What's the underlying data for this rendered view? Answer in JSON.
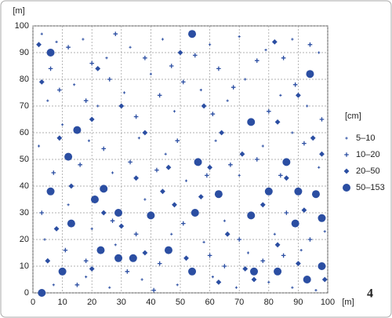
{
  "chart_data": {
    "type": "scatter",
    "xlabel": "[m]",
    "ylabel": "[m]",
    "legend_title": "[cm]",
    "figure_number": "4",
    "xlim": [
      0,
      100
    ],
    "ylim": [
      0,
      100
    ],
    "xticks": [
      0,
      10,
      20,
      30,
      40,
      50,
      60,
      70,
      80,
      90,
      100
    ],
    "yticks": [
      0,
      10,
      20,
      30,
      40,
      50,
      60,
      70,
      80,
      90,
      100
    ],
    "grid": true,
    "legend": "right",
    "series": [
      {
        "name": "5–10",
        "color": "#2b4ea2",
        "marker": "plus",
        "x": [
          3,
          8,
          17,
          25,
          33,
          44,
          60,
          70,
          79,
          88,
          97,
          5,
          14,
          22,
          31,
          40,
          48,
          57,
          66,
          72,
          84,
          93,
          2,
          10,
          19,
          27,
          36,
          45,
          52,
          62,
          70,
          78,
          88,
          97,
          4,
          12,
          20,
          28,
          38,
          47,
          58,
          65,
          73,
          82,
          91,
          99,
          7,
          18,
          26,
          37,
          49,
          61,
          69,
          80,
          88,
          96
        ],
        "y": [
          97,
          94,
          95,
          88,
          92,
          95,
          93,
          96,
          91,
          95,
          90,
          72,
          78,
          70,
          75,
          82,
          68,
          76,
          72,
          80,
          74,
          70,
          55,
          63,
          57,
          45,
          58,
          52,
          42,
          57,
          44,
          55,
          60,
          47,
          20,
          33,
          24,
          18,
          35,
          22,
          19,
          27,
          15,
          22,
          16,
          23,
          3,
          6,
          2,
          5,
          3,
          6,
          2,
          4,
          2,
          1
        ]
      },
      {
        "name": "10–20",
        "color": "#2b4ea2",
        "marker": "plus",
        "x": [
          6,
          12,
          20,
          28,
          38,
          47,
          55,
          63,
          76,
          85,
          94,
          9,
          18,
          26,
          35,
          43,
          51,
          61,
          68,
          80,
          89,
          98,
          7,
          16,
          24,
          33,
          42,
          49,
          59,
          67,
          76,
          84,
          92,
          3,
          11,
          18,
          27,
          35,
          43,
          51,
          60,
          70,
          78,
          86,
          94,
          15,
          32,
          41,
          65,
          85
        ],
        "y": [
          84,
          92,
          86,
          97,
          88,
          85,
          89,
          84,
          87,
          88,
          93,
          76,
          72,
          80,
          66,
          74,
          79,
          67,
          77,
          68,
          78,
          65,
          45,
          48,
          54,
          49,
          46,
          57,
          44,
          48,
          50,
          44,
          56,
          30,
          16,
          12,
          27,
          22,
          11,
          26,
          14,
          20,
          12,
          30,
          20,
          3,
          8,
          1,
          10,
          14
        ]
      },
      {
        "name": "20–50",
        "color": "#2b4ea2",
        "marker": "diamond",
        "x": [
          2,
          22,
          30,
          50,
          58,
          82,
          90,
          3,
          9,
          20,
          38,
          46,
          64,
          71,
          83,
          95,
          13,
          35,
          44,
          60,
          78,
          86,
          98,
          8,
          24,
          30,
          48,
          57,
          66,
          83,
          92,
          5,
          20,
          38,
          52,
          63,
          72,
          90,
          99,
          75
        ],
        "y": [
          93,
          84,
          70,
          90,
          70,
          94,
          74,
          79,
          58,
          65,
          60,
          47,
          60,
          52,
          64,
          58,
          40,
          43,
          38,
          47,
          33,
          43,
          52,
          24,
          30,
          25,
          33,
          36,
          22,
          18,
          31,
          12,
          9,
          15,
          13,
          4,
          9,
          11,
          5,
          5
        ]
      },
      {
        "name": "50–153",
        "color": "#2b4ea2",
        "marker": "circle",
        "x": [
          6,
          54,
          94,
          15,
          12,
          56,
          74,
          86,
          24,
          21,
          29,
          40,
          55,
          63,
          74,
          80,
          90,
          96,
          6,
          13,
          89,
          98,
          34,
          23,
          46,
          29,
          10,
          54,
          75,
          83,
          93,
          98,
          3
        ],
        "y": [
          90,
          97,
          82,
          61,
          51,
          49,
          64,
          49,
          39,
          35,
          30,
          29,
          30,
          37,
          29,
          38,
          38,
          37,
          38,
          26,
          26,
          28,
          13,
          16,
          16,
          13,
          8,
          8,
          8,
          8,
          5,
          10,
          0
        ]
      }
    ]
  }
}
